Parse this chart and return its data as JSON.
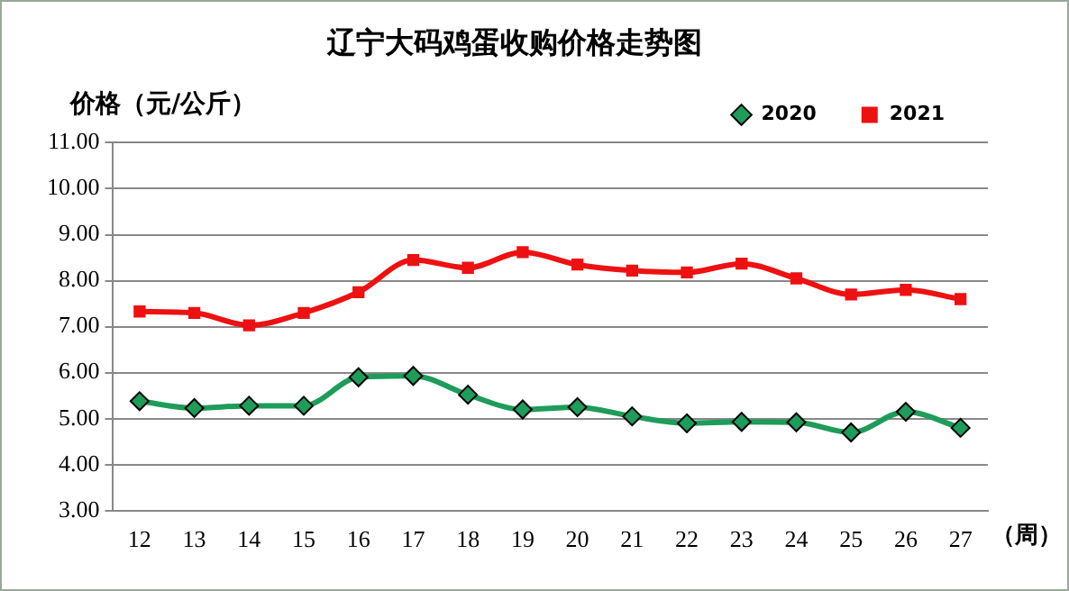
{
  "chart_data": {
    "type": "line",
    "title": "辽宁大码鸡蛋收购价格走势图",
    "ylabel": "价格（元/公斤）",
    "xlabel": "（周）",
    "categories": [
      "12",
      "13",
      "14",
      "15",
      "16",
      "17",
      "18",
      "19",
      "20",
      "21",
      "22",
      "23",
      "24",
      "25",
      "26",
      "27"
    ],
    "series": [
      {
        "name": "2020",
        "color": "#1e9c5a",
        "marker": "diamond",
        "values": [
          5.38,
          5.23,
          5.28,
          5.28,
          5.9,
          5.93,
          5.52,
          5.2,
          5.25,
          5.05,
          4.9,
          4.93,
          4.92,
          4.7,
          5.15,
          4.8
        ]
      },
      {
        "name": "2021",
        "color": "#ee1111",
        "marker": "square",
        "values": [
          7.33,
          7.3,
          7.03,
          7.3,
          7.75,
          8.45,
          8.28,
          8.62,
          8.35,
          8.22,
          8.18,
          8.37,
          8.05,
          7.7,
          7.8,
          7.6
        ]
      }
    ],
    "ylim": [
      3,
      11
    ],
    "yticks": [
      {
        "value": 3,
        "label": "3.00"
      },
      {
        "value": 4,
        "label": "4.00"
      },
      {
        "value": 5,
        "label": "5.00"
      },
      {
        "value": 6,
        "label": "6.00"
      },
      {
        "value": 7,
        "label": "7.00"
      },
      {
        "value": 8,
        "label": "8.00"
      },
      {
        "value": 9,
        "label": "9.00"
      },
      {
        "value": 10,
        "label": "10.00"
      },
      {
        "value": 11,
        "label": "11.00"
      }
    ],
    "grid": "y",
    "legend": "top right"
  }
}
